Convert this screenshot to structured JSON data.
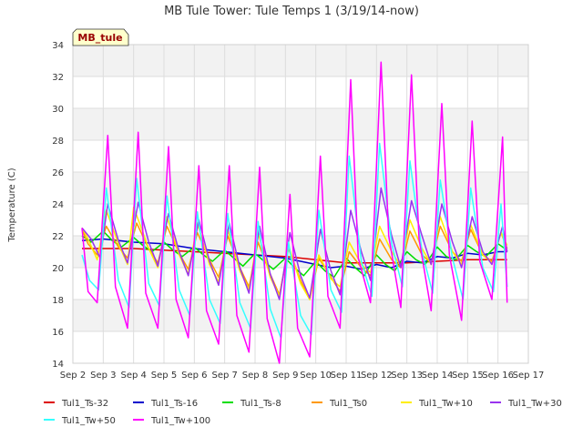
{
  "chart_data": {
    "type": "line",
    "title": "MB Tule Tower: Tule Temps 1 (3/19/14-now)",
    "station_badge": "MB_tule",
    "ylabel": "Temperature (C)",
    "xlabel": "",
    "ylim": [
      14,
      34
    ],
    "yticks": [
      14,
      16,
      18,
      20,
      22,
      24,
      26,
      28,
      30,
      32,
      34
    ],
    "xlim": [
      2,
      17
    ],
    "xticks": [
      {
        "v": 2,
        "label": "Sep 2"
      },
      {
        "v": 3,
        "label": "Sep 3"
      },
      {
        "v": 4,
        "label": "Sep 4"
      },
      {
        "v": 5,
        "label": "Sep 5"
      },
      {
        "v": 6,
        "label": "Sep 6"
      },
      {
        "v": 7,
        "label": "Sep 7"
      },
      {
        "v": 8,
        "label": "Sep 8"
      },
      {
        "v": 9,
        "label": "Sep 9"
      },
      {
        "v": 10,
        "label": "Sep 10"
      },
      {
        "v": 11,
        "label": "Sep 11"
      },
      {
        "v": 12,
        "label": "Sep 12"
      },
      {
        "v": 13,
        "label": "Sep 13"
      },
      {
        "v": 14,
        "label": "Sep 14"
      },
      {
        "v": 15,
        "label": "Sep 15"
      },
      {
        "v": 16,
        "label": "Sep 16"
      },
      {
        "v": 17,
        "label": "Sep 17"
      }
    ],
    "grid": true,
    "legend_position": "bottom",
    "series": [
      {
        "name": "Tul1_Ts-32",
        "color": "#dd0000",
        "x": [
          2.3,
          3,
          4,
          5,
          6,
          7,
          8,
          9,
          10,
          11,
          12,
          13,
          14,
          15,
          16,
          16.3
        ],
        "y": [
          21.2,
          21.2,
          21.2,
          21.1,
          21.0,
          20.9,
          20.8,
          20.7,
          20.5,
          20.3,
          20.3,
          20.3,
          20.4,
          20.5,
          20.5,
          20.5
        ]
      },
      {
        "name": "Tul1_Ts-16",
        "color": "#0000cc",
        "x": [
          2.3,
          3,
          4,
          5,
          6,
          7,
          8,
          9,
          10,
          10.5,
          11,
          11.5,
          12,
          12.5,
          13,
          13.5,
          14,
          14.5,
          15,
          15.5,
          16,
          16.3
        ],
        "y": [
          21.7,
          21.8,
          21.6,
          21.5,
          21.2,
          21.0,
          20.8,
          20.6,
          20.2,
          20.0,
          20.1,
          19.9,
          20.2,
          20.0,
          20.4,
          20.3,
          20.7,
          20.6,
          20.9,
          20.8,
          21.0,
          21.0
        ]
      },
      {
        "name": "Tul1_Ts-8",
        "color": "#00dd00",
        "x": [
          2.3,
          2.6,
          3,
          3.3,
          3.6,
          4,
          4.3,
          4.6,
          5,
          5.3,
          5.6,
          6,
          6.3,
          6.6,
          7,
          7.3,
          7.6,
          8,
          8.3,
          8.6,
          9,
          9.3,
          9.6,
          10,
          10.3,
          10.6,
          11,
          11.3,
          11.6,
          12,
          12.3,
          12.6,
          13,
          13.3,
          13.6,
          14,
          14.3,
          14.6,
          15,
          15.3,
          15.6,
          16,
          16.3
        ],
        "y": [
          22.0,
          21.6,
          22.3,
          21.7,
          21.3,
          21.9,
          21.4,
          21.0,
          21.6,
          21.1,
          20.7,
          21.3,
          20.8,
          20.4,
          21.1,
          20.6,
          20.1,
          20.9,
          20.4,
          19.9,
          20.6,
          20.0,
          19.5,
          20.4,
          19.8,
          19.4,
          20.6,
          20.0,
          19.5,
          20.8,
          20.2,
          19.8,
          21.0,
          20.5,
          20.2,
          21.3,
          20.7,
          20.5,
          21.4,
          21.0,
          20.7,
          21.5,
          21.1
        ]
      },
      {
        "name": "Tul1_Ts0",
        "color": "#ff9900",
        "x": [
          2.3,
          2.5,
          2.8,
          3.1,
          3.5,
          3.8,
          4.1,
          4.5,
          4.8,
          5.1,
          5.5,
          5.8,
          6.1,
          6.5,
          6.8,
          7.1,
          7.5,
          7.8,
          8.1,
          8.5,
          8.8,
          9.1,
          9.5,
          9.8,
          10.1,
          10.5,
          10.8,
          11.1,
          11.5,
          11.8,
          12.1,
          12.5,
          12.8,
          13.1,
          13.5,
          13.8,
          14.1,
          14.5,
          14.8,
          15.1,
          15.5,
          15.8,
          16.1,
          16.3
        ],
        "y": [
          22.4,
          21.5,
          20.8,
          22.6,
          21.3,
          20.6,
          22.8,
          21.2,
          20.3,
          22.6,
          20.9,
          19.9,
          22.2,
          20.5,
          19.4,
          22.0,
          20.0,
          18.8,
          21.6,
          19.6,
          18.3,
          21.2,
          19.2,
          18.0,
          20.6,
          19.4,
          18.5,
          21.0,
          20.0,
          19.5,
          21.8,
          20.5,
          20.0,
          22.3,
          20.8,
          20.3,
          22.6,
          21.0,
          20.4,
          22.4,
          20.8,
          20.4,
          22.2,
          21.2
        ]
      },
      {
        "name": "Tul1_Tw+10",
        "color": "#ffee00",
        "x": [
          2.3,
          2.5,
          2.8,
          3.1,
          3.5,
          3.8,
          4.0,
          4.5,
          4.8,
          5.1,
          5.5,
          5.8,
          6.1,
          6.5,
          6.8,
          7.1,
          7.5,
          7.8,
          8.1,
          8.5,
          8.8,
          9.1,
          9.5,
          9.8,
          10.1,
          10.5,
          10.8,
          11.1,
          11.5,
          11.8,
          12.1,
          12.5,
          12.8,
          13.1,
          13.5,
          13.8,
          14.1,
          14.5,
          14.8,
          15.1,
          15.5,
          15.8,
          16.1,
          16.3
        ],
        "y": [
          22.5,
          21.8,
          20.5,
          23.6,
          21.5,
          20.2,
          23.8,
          21.2,
          20.0,
          23.2,
          20.8,
          19.6,
          22.8,
          20.2,
          19.1,
          22.4,
          19.8,
          18.6,
          22.2,
          19.4,
          18.2,
          21.4,
          19.0,
          18.0,
          20.8,
          19.3,
          18.8,
          21.6,
          20.2,
          19.7,
          22.6,
          21.0,
          20.1,
          23.0,
          21.2,
          20.2,
          23.2,
          21.0,
          20.2,
          22.7,
          20.8,
          20.3,
          22.2,
          21.4
        ]
      },
      {
        "name": "Tul1_Tw+30",
        "color": "#9933ee",
        "x": [
          2.3,
          2.6,
          2.9,
          3.15,
          3.5,
          3.8,
          4.15,
          4.5,
          4.8,
          5.15,
          5.5,
          5.8,
          6.15,
          6.5,
          6.8,
          7.15,
          7.5,
          7.8,
          8.15,
          8.5,
          8.8,
          9.15,
          9.5,
          9.8,
          10.15,
          10.5,
          10.8,
          11.15,
          11.5,
          11.8,
          12.15,
          12.5,
          12.8,
          13.15,
          13.5,
          13.8,
          14.15,
          14.5,
          14.8,
          15.15,
          15.5,
          15.8,
          16.15,
          16.3
        ],
        "y": [
          22.5,
          21.8,
          20.6,
          24.0,
          21.7,
          20.3,
          24.1,
          21.6,
          20.1,
          23.4,
          21.0,
          19.5,
          23.0,
          20.4,
          18.9,
          22.8,
          20.0,
          18.4,
          22.6,
          19.6,
          18.0,
          22.2,
          19.5,
          18.1,
          22.4,
          19.8,
          18.3,
          23.6,
          21.0,
          19.2,
          25.0,
          22.0,
          20.0,
          24.2,
          22.0,
          20.2,
          24.0,
          21.6,
          20.0,
          23.2,
          21.0,
          20.2,
          22.6,
          21.0
        ]
      },
      {
        "name": "Tul1_Tw+50",
        "color": "#33ffff",
        "x": [
          2.3,
          2.55,
          2.85,
          3.1,
          3.5,
          3.85,
          4.1,
          4.5,
          4.85,
          5.1,
          5.5,
          5.85,
          6.1,
          6.5,
          6.85,
          7.1,
          7.5,
          7.85,
          8.1,
          8.5,
          8.85,
          9.1,
          9.5,
          9.85,
          10.1,
          10.5,
          10.85,
          11.1,
          11.5,
          11.85,
          12.1,
          12.5,
          12.85,
          13.1,
          13.5,
          13.85,
          14.1,
          14.5,
          14.85,
          15.1,
          15.5,
          15.85,
          16.1,
          16.3
        ],
        "y": [
          20.8,
          19.2,
          18.6,
          25.0,
          19.2,
          17.5,
          25.6,
          19.0,
          17.6,
          24.5,
          18.6,
          17.0,
          23.5,
          18.0,
          16.5,
          23.4,
          17.8,
          16.2,
          22.9,
          17.4,
          15.6,
          21.6,
          17.0,
          15.8,
          23.6,
          18.6,
          17.2,
          27.0,
          20.4,
          18.2,
          27.8,
          21.5,
          18.8,
          26.7,
          21.0,
          18.4,
          25.5,
          20.6,
          18.0,
          25.0,
          20.0,
          18.5,
          24.0,
          18.8
        ]
      },
      {
        "name": "Tul1_Tw+100",
        "color": "#ff00ff",
        "x": [
          2.3,
          2.5,
          2.8,
          3.15,
          3.4,
          3.8,
          4.15,
          4.4,
          4.8,
          5.15,
          5.4,
          5.8,
          6.15,
          6.4,
          6.8,
          7.15,
          7.4,
          7.8,
          8.15,
          8.4,
          8.8,
          9.15,
          9.4,
          9.8,
          10.15,
          10.4,
          10.8,
          11.15,
          11.4,
          11.8,
          12.15,
          12.4,
          12.8,
          13.15,
          13.4,
          13.8,
          14.15,
          14.4,
          14.8,
          15.15,
          15.4,
          15.8,
          16.15,
          16.3
        ],
        "y": [
          22.5,
          18.5,
          17.8,
          28.3,
          18.8,
          16.2,
          28.5,
          18.4,
          16.2,
          27.6,
          18.0,
          15.6,
          26.4,
          17.3,
          15.2,
          26.4,
          17.0,
          14.7,
          26.3,
          16.8,
          14.0,
          24.6,
          16.2,
          14.4,
          27.0,
          18.2,
          16.2,
          31.8,
          20.6,
          17.8,
          32.9,
          22.0,
          17.5,
          32.1,
          21.8,
          17.3,
          30.3,
          20.8,
          16.7,
          29.2,
          20.4,
          18.0,
          28.2,
          17.8
        ]
      }
    ]
  }
}
